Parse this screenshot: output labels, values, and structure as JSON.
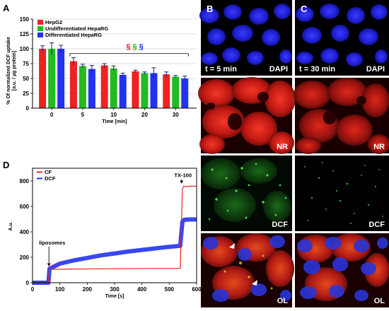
{
  "colors": {
    "red": "#ee2222",
    "green": "#22bb22",
    "blue": "#2233ee",
    "err": "#1f1f7a"
  },
  "chart_data": [
    {
      "panel": "A",
      "type": "bar",
      "categories": [
        "0",
        "5",
        "10",
        "20",
        "30"
      ],
      "series": [
        {
          "name": "HepG2",
          "values": [
            100,
            79,
            72,
            62,
            57
          ],
          "errors": [
            5,
            6,
            3,
            2,
            4
          ]
        },
        {
          "name": "Undifferentiated HepaRG",
          "values": [
            100,
            71,
            67,
            59,
            53
          ],
          "errors": [
            10,
            3,
            4,
            2,
            2
          ]
        },
        {
          "name": "Differentiated HepaRG",
          "values": [
            100,
            66,
            56,
            59,
            50
          ],
          "errors": [
            6,
            6,
            3,
            9,
            4
          ]
        }
      ],
      "xlabel": "Time [min]",
      "ylabel_line1": "% Of normalized DCF uptake",
      "ylabel_line2": "[a.u. / µg protein]",
      "ylim": [
        0,
        150
      ],
      "yticks": [
        "0",
        "25",
        "50",
        "75",
        "100",
        "125",
        "150"
      ],
      "annotation": "§ § §",
      "bracket": {
        "from_category": "5",
        "to_category": "30",
        "y": 92
      }
    },
    {
      "panel": "D",
      "type": "line",
      "series": [
        {
          "name": "CF",
          "points": [
            [
              0,
              0
            ],
            [
              58,
              0
            ],
            [
              62,
              105
            ],
            [
              150,
              108
            ],
            [
              300,
              110
            ],
            [
              450,
              112
            ],
            [
              540,
              112
            ],
            [
              548,
              735
            ],
            [
              553,
              760
            ],
            [
              560,
              755
            ],
            [
              580,
              760
            ],
            [
              600,
              758
            ]
          ]
        },
        {
          "name": "DCF",
          "points": [
            [
              0,
              0
            ],
            [
              58,
              0
            ],
            [
              62,
              110
            ],
            [
              100,
              150
            ],
            [
              150,
              175
            ],
            [
              200,
              195
            ],
            [
              250,
              215
            ],
            [
              300,
              230
            ],
            [
              350,
              245
            ],
            [
              400,
              258
            ],
            [
              450,
              270
            ],
            [
              500,
              282
            ],
            [
              540,
              290
            ],
            [
              548,
              480
            ],
            [
              555,
              495
            ],
            [
              580,
              498
            ],
            [
              600,
              497
            ]
          ]
        }
      ],
      "xlabel": "Time [s]",
      "ylabel": "A.u.",
      "xlim": [
        0,
        600
      ],
      "ylim": [
        0,
        900
      ],
      "xticks": [
        "0",
        "100",
        "200",
        "300",
        "400",
        "500",
        "600"
      ],
      "yticks": [
        "0",
        "200",
        "400",
        "600",
        "800"
      ],
      "annotations": [
        {
          "text": "liposomes",
          "x": 60,
          "y": 300
        },
        {
          "text": "TX-100",
          "x": 545,
          "y": 830
        }
      ]
    }
  ],
  "micrographs": {
    "column_B": "B",
    "column_C": "C",
    "time_B": "t = 5 min",
    "time_C": "t = 30 min",
    "rows": [
      "DAPI",
      "NR",
      "DCF",
      "OL"
    ]
  },
  "panel_letters": {
    "A": "A",
    "D": "D"
  }
}
